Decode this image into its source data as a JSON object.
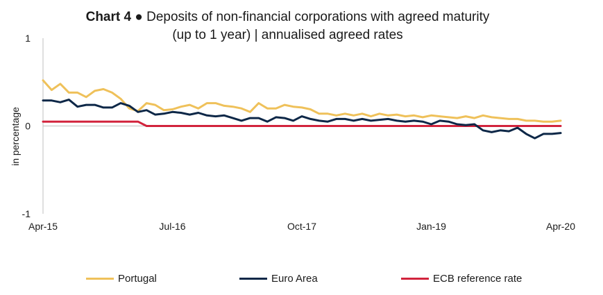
{
  "title": {
    "prefix": "Chart 4",
    "bullet": "●",
    "line1": "Deposits of non-financial corporations with agreed maturity",
    "line2": "(up to 1 year) | annualised agreed rates"
  },
  "chart_data": {
    "type": "line",
    "ylabel": "in percentage",
    "ylim": [
      -1,
      1
    ],
    "yticks": [
      "1",
      "0",
      "-1"
    ],
    "ytick_values": [
      1,
      0,
      -1
    ],
    "x_start": "Apr-15",
    "x_end": "Apr-20",
    "xticks": [
      "Apr-15",
      "Jul-16",
      "Oct-17",
      "Jan-19",
      "Apr-20"
    ],
    "xtick_index": [
      0,
      15,
      30,
      45,
      60
    ],
    "grid": false,
    "legend_position": "bottom",
    "series": [
      {
        "name": "Portugal",
        "color": "#EFC15A",
        "values": [
          0.52,
          0.41,
          0.48,
          0.38,
          0.38,
          0.33,
          0.4,
          0.42,
          0.38,
          0.31,
          0.2,
          0.17,
          0.26,
          0.24,
          0.18,
          0.19,
          0.22,
          0.24,
          0.2,
          0.26,
          0.26,
          0.23,
          0.22,
          0.2,
          0.16,
          0.26,
          0.2,
          0.2,
          0.24,
          0.22,
          0.21,
          0.19,
          0.14,
          0.14,
          0.12,
          0.14,
          0.12,
          0.14,
          0.11,
          0.14,
          0.12,
          0.13,
          0.11,
          0.12,
          0.1,
          0.12,
          0.11,
          0.1,
          0.09,
          0.11,
          0.09,
          0.12,
          0.1,
          0.09,
          0.08,
          0.08,
          0.06,
          0.06,
          0.05,
          0.05,
          0.06
        ]
      },
      {
        "name": "Euro Area",
        "color": "#0D2747",
        "values": [
          0.29,
          0.29,
          0.27,
          0.3,
          0.22,
          0.24,
          0.24,
          0.21,
          0.21,
          0.26,
          0.23,
          0.16,
          0.18,
          0.13,
          0.14,
          0.16,
          0.15,
          0.13,
          0.15,
          0.12,
          0.11,
          0.12,
          0.09,
          0.06,
          0.09,
          0.09,
          0.05,
          0.1,
          0.09,
          0.06,
          0.11,
          0.08,
          0.06,
          0.05,
          0.08,
          0.08,
          0.06,
          0.08,
          0.06,
          0.07,
          0.08,
          0.06,
          0.05,
          0.06,
          0.05,
          0.02,
          0.06,
          0.05,
          0.02,
          0.01,
          0.02,
          -0.05,
          -0.07,
          -0.05,
          -0.06,
          -0.02,
          -0.09,
          -0.14,
          -0.09,
          -0.09,
          -0.08
        ]
      },
      {
        "name": "ECB reference rate",
        "color": "#D2233C",
        "values": [
          0.05,
          0.05,
          0.05,
          0.05,
          0.05,
          0.05,
          0.05,
          0.05,
          0.05,
          0.05,
          0.05,
          0.05,
          0.0,
          0.0,
          0.0,
          0.0,
          0.0,
          0.0,
          0.0,
          0.0,
          0.0,
          0.0,
          0.0,
          0.0,
          0.0,
          0.0,
          0.0,
          0.0,
          0.0,
          0.0,
          0.0,
          0.0,
          0.0,
          0.0,
          0.0,
          0.0,
          0.0,
          0.0,
          0.0,
          0.0,
          0.0,
          0.0,
          0.0,
          0.0,
          0.0,
          0.0,
          0.0,
          0.0,
          0.0,
          0.0,
          0.0,
          0.0,
          0.0,
          0.0,
          0.0,
          0.0,
          0.0,
          0.0,
          0.0,
          0.0,
          0.0
        ]
      }
    ]
  }
}
